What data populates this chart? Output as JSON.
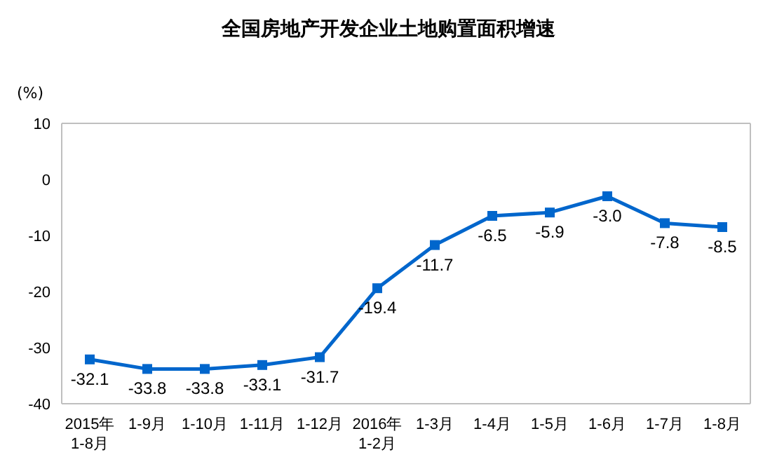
{
  "chart_data": {
    "type": "line",
    "title": "全国房地产开发企业土地购置面积增速",
    "ylabel": "(%)",
    "categories": [
      "2015年\n1-8月",
      "1-9月",
      "1-10月",
      "1-11月",
      "1-12月",
      "2016年\n1-2月",
      "1-3月",
      "1-4月",
      "1-5月",
      "1-6月",
      "1-7月",
      "1-8月"
    ],
    "series": [
      {
        "color": "#0066cc",
        "values": [
          -32.1,
          -33.8,
          -33.8,
          -33.1,
          -31.7,
          -19.4,
          -11.7,
          -6.5,
          -5.9,
          -3.0,
          -7.8,
          -8.5
        ],
        "value_labels": [
          "-32.1",
          "-33.8",
          "-33.8",
          "-33.1",
          "-31.7",
          "-19.4",
          "-11.7",
          "-6.5",
          "-5.9",
          "-3.0",
          "-7.8",
          "-8.5"
        ]
      }
    ],
    "ylim": [
      -40,
      10
    ],
    "yticks": [
      -40,
      -30,
      -20,
      -10,
      0,
      10
    ],
    "legend": false,
    "marker": "square",
    "line_style": "solid"
  }
}
